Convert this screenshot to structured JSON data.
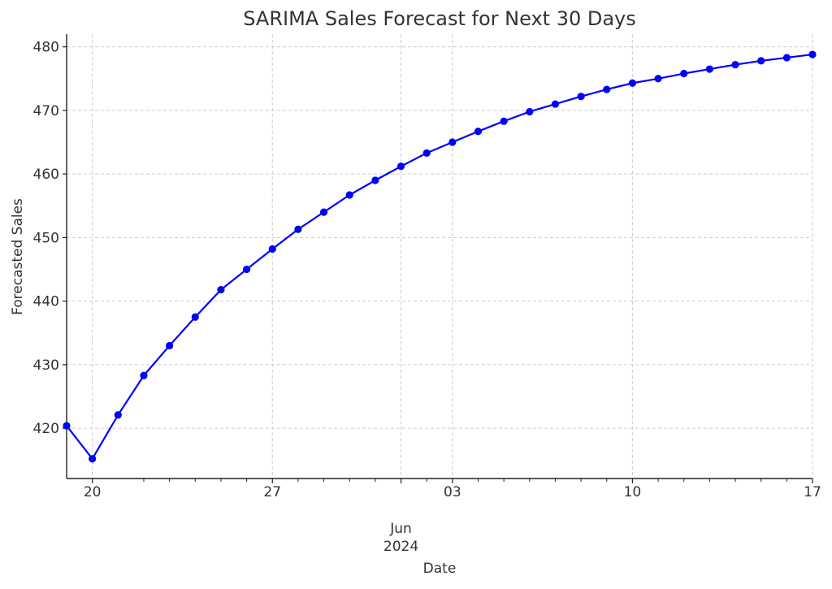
{
  "chart_data": {
    "type": "line",
    "title": "SARIMA Sales Forecast for Next 30 Days",
    "xlabel": "Date",
    "ylabel": "Forecasted Sales",
    "ylim": [
      412.1,
      482.0
    ],
    "xlim": [
      "2024-05-19",
      "2024-06-17"
    ],
    "grid": true,
    "line_color": "#0000ff",
    "x_ticks": [
      {
        "date": "2024-05-20",
        "label": "20"
      },
      {
        "date": "2024-05-27",
        "label": "27"
      },
      {
        "date": "2024-06-03",
        "label": "03"
      },
      {
        "date": "2024-06-10",
        "label": "10"
      },
      {
        "date": "2024-06-17",
        "label": "17"
      }
    ],
    "x_minor_dates": [
      "2024-05-22",
      "2024-05-23",
      "2024-05-24",
      "2024-05-25",
      "2024-05-26",
      "2024-05-28",
      "2024-05-29",
      "2024-05-30",
      "2024-05-31",
      "2024-06-01",
      "2024-06-02",
      "2024-06-04",
      "2024-06-05",
      "2024-06-06",
      "2024-06-07",
      "2024-06-08",
      "2024-06-09",
      "2024-06-11",
      "2024-06-12",
      "2024-06-13",
      "2024-06-14",
      "2024-06-15",
      "2024-06-16"
    ],
    "x_secondary_label": {
      "date": "2024-06-01",
      "month": "Jun",
      "year": "2024"
    },
    "y_ticks": [
      420,
      430,
      440,
      450,
      460,
      470,
      480
    ],
    "x": [
      "2024-05-19",
      "2024-05-20",
      "2024-05-21",
      "2024-05-22",
      "2024-05-23",
      "2024-05-24",
      "2024-05-25",
      "2024-05-26",
      "2024-05-27",
      "2024-05-28",
      "2024-05-29",
      "2024-05-30",
      "2024-05-31",
      "2024-06-01",
      "2024-06-02",
      "2024-06-03",
      "2024-06-04",
      "2024-06-05",
      "2024-06-06",
      "2024-06-07",
      "2024-06-08",
      "2024-06-09",
      "2024-06-10",
      "2024-06-11",
      "2024-06-12",
      "2024-06-13",
      "2024-06-14",
      "2024-06-15",
      "2024-06-16",
      "2024-06-17"
    ],
    "series": [
      {
        "values": [
          420.4,
          415.2,
          422.1,
          428.3,
          433.0,
          437.5,
          441.8,
          445.0,
          448.2,
          451.3,
          454.0,
          456.7,
          459.0,
          461.2,
          463.3,
          465.0,
          466.7,
          468.3,
          469.8,
          471.0,
          472.2,
          473.3,
          474.3,
          475.0,
          475.8,
          476.5,
          477.2,
          477.8,
          478.3,
          478.8
        ]
      }
    ]
  }
}
